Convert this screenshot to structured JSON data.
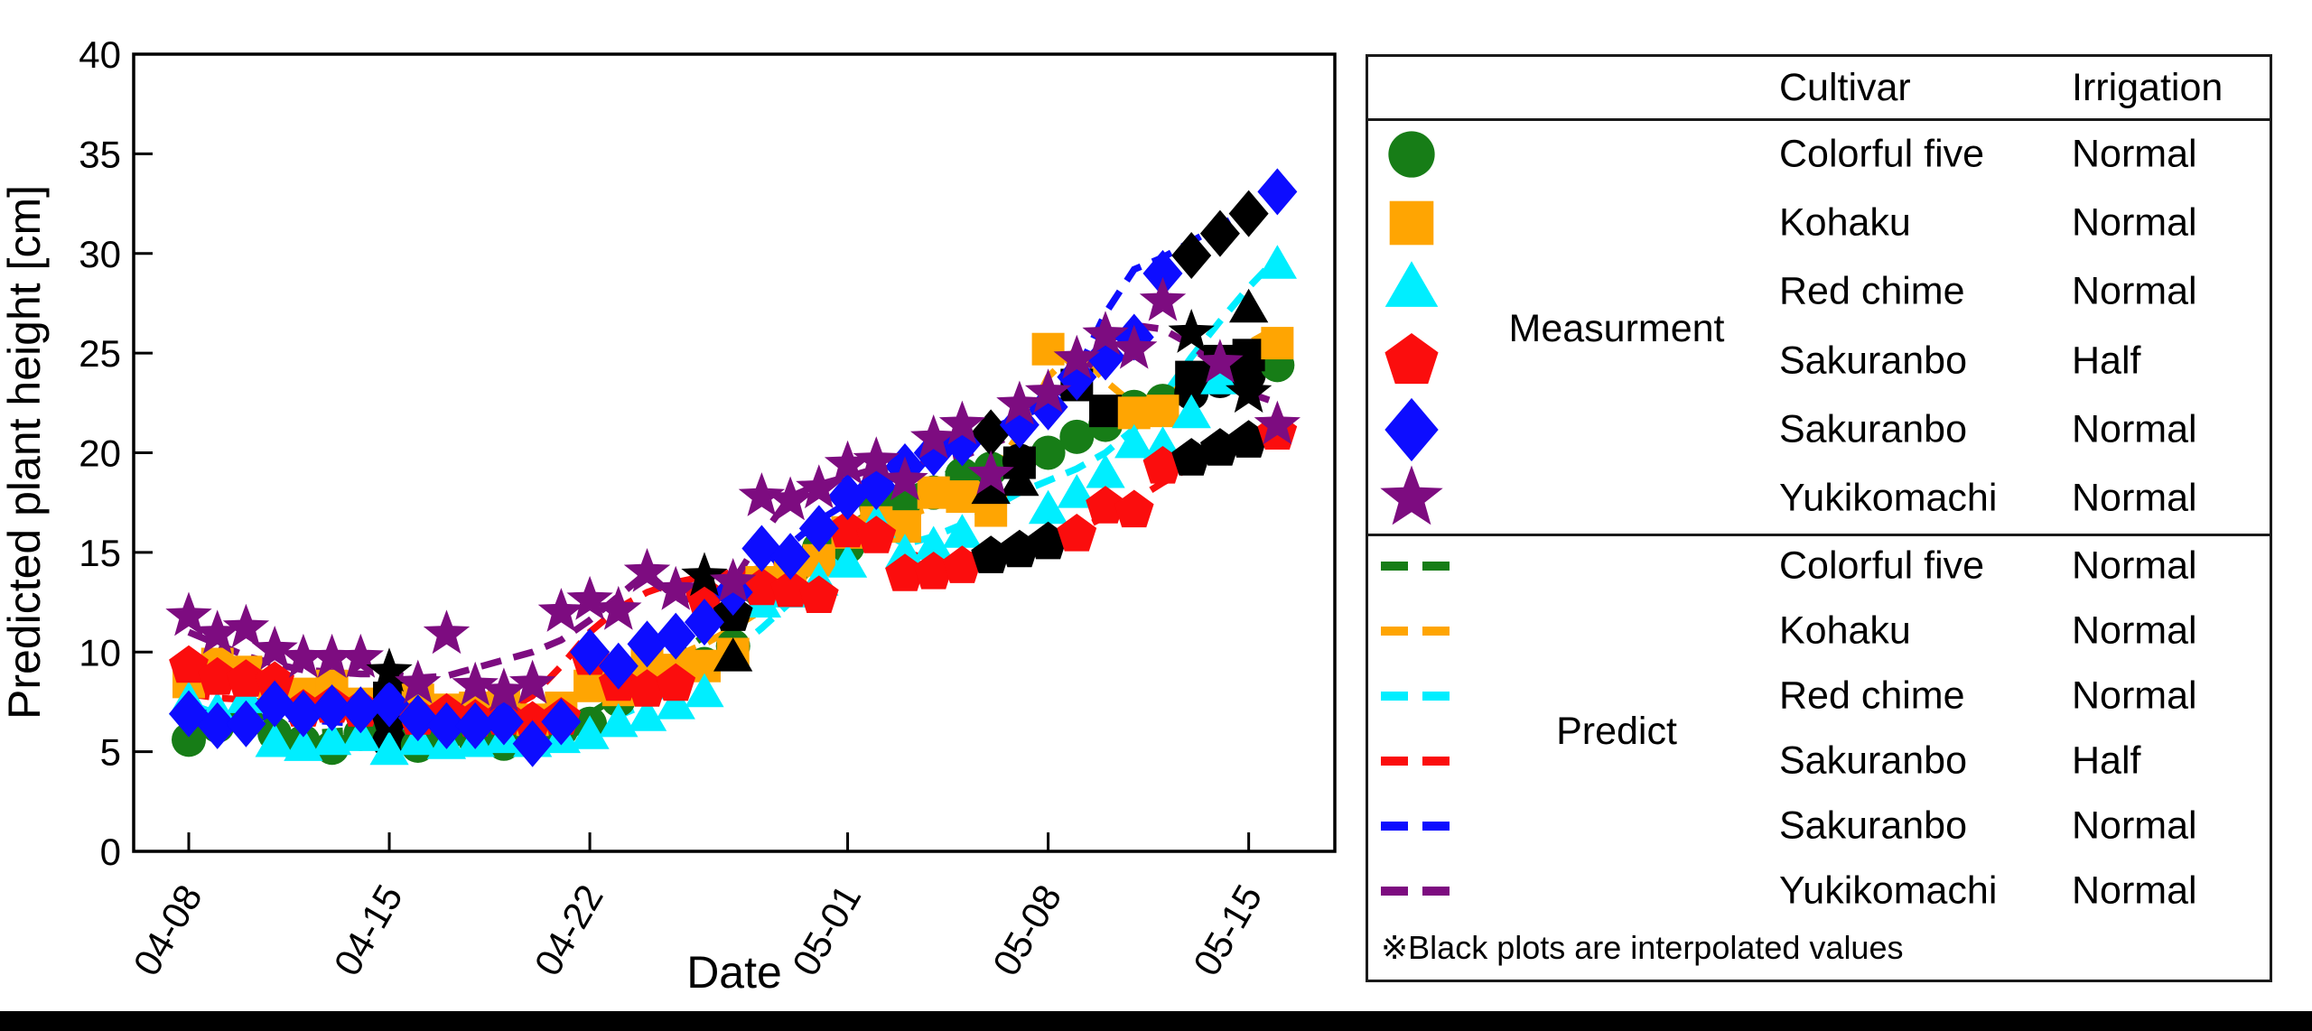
{
  "chart_data": {
    "type": "scatter",
    "title": "",
    "xlabel": "Date",
    "ylabel": "Predicted plant height [cm]",
    "ylim": [
      0,
      40
    ],
    "yticks": [
      0,
      5,
      10,
      15,
      20,
      25,
      30,
      35,
      40
    ],
    "xtick_labels": [
      "04-08",
      "04-15",
      "04-22",
      "05-01",
      "05-08",
      "05-15"
    ],
    "grid": false,
    "dates": [
      "04-08",
      "04-09",
      "04-10",
      "04-11",
      "04-12",
      "04-13",
      "04-14",
      "04-15",
      "04-16",
      "04-17",
      "04-18",
      "04-19",
      "04-20",
      "04-21",
      "04-22",
      "04-23",
      "04-24",
      "04-25",
      "04-26",
      "04-27",
      "04-28",
      "04-29",
      "04-30",
      "05-01",
      "05-02",
      "05-03",
      "05-04",
      "05-05",
      "05-06",
      "05-07",
      "05-08",
      "05-09",
      "05-10",
      "05-11",
      "05-12",
      "05-13",
      "05-14",
      "05-15",
      "05-16"
    ],
    "interpolated_color": "#000000",
    "measurement_series": [
      {
        "name": "Colorful five Normal",
        "marker": "circle",
        "color": "#177d17",
        "values": [
          5.6,
          6.3,
          6.6,
          5.9,
          5.5,
          5.2,
          5.9,
          5.5,
          5.3,
          5.9,
          5.6,
          5.4,
          5.6,
          6.1,
          6.4,
          7.6,
          8.4,
          8.9,
          9.4,
          10.3,
          13.0,
          13.9,
          15.2,
          15.3,
          17.3,
          17.6,
          18.0,
          18.9,
          19.2,
          19.6,
          20.0,
          20.8,
          21.4,
          22.3,
          22.6,
          23.0,
          23.6,
          23.9,
          24.4
        ],
        "interpolated_days": [
          7,
          29,
          35,
          36,
          37
        ]
      },
      {
        "name": "Kohaku Normal",
        "marker": "square",
        "color": "#ffa502",
        "values": [
          8.5,
          9.4,
          9.0,
          7.9,
          7.9,
          8.3,
          7.4,
          7.7,
          7.6,
          7.1,
          7.2,
          7.4,
          6.6,
          7.2,
          8.3,
          8.1,
          9.4,
          9.1,
          9.3,
          9.9,
          13.5,
          14.0,
          14.6,
          16.0,
          16.5,
          16.3,
          18.0,
          17.8,
          17.1,
          19.5,
          25.2,
          23.4,
          22.1,
          22.0,
          22.1,
          23.8,
          24.6,
          24.9,
          25.5
        ],
        "interpolated_days": [
          7,
          29,
          31,
          32,
          35,
          36,
          37
        ]
      },
      {
        "name": "Red chime Normal",
        "marker": "triangle",
        "color": "#00eeff",
        "values": [
          7.4,
          6.9,
          7.5,
          5.3,
          5.1,
          5.4,
          5.6,
          4.9,
          5.4,
          5.2,
          5.3,
          5.5,
          5.3,
          5.5,
          5.7,
          6.3,
          6.6,
          7.2,
          7.8,
          9.6,
          12.3,
          12.8,
          13.4,
          14.3,
          16.3,
          14.8,
          15.2,
          15.8,
          18.0,
          18.4,
          17.0,
          17.8,
          18.8,
          20.3,
          20.2,
          21.8,
          23.5,
          27.1,
          29.3
        ],
        "interpolated_days": [
          19,
          28,
          29,
          37
        ]
      },
      {
        "name": "Sakuranbo Half",
        "marker": "pentagon",
        "color": "#fb0d0d",
        "values": [
          9.3,
          8.7,
          8.6,
          8.5,
          7.1,
          7.3,
          7.1,
          6.8,
          6.7,
          6.9,
          6.6,
          6.7,
          6.5,
          6.7,
          9.7,
          8.4,
          8.1,
          8.4,
          12.8,
          11.9,
          13.2,
          13.1,
          12.8,
          16.1,
          15.8,
          13.9,
          14.0,
          14.3,
          14.8,
          15.1,
          15.5,
          15.9,
          17.3,
          17.1,
          19.3,
          19.7,
          20.2,
          20.6,
          21.0
        ],
        "interpolated_days": [
          7,
          19,
          28,
          29,
          30,
          35,
          36,
          37
        ]
      },
      {
        "name": "Sakuranbo Normal",
        "marker": "diamond",
        "color": "#0d0dff",
        "values": [
          6.9,
          6.3,
          6.4,
          7.4,
          6.9,
          7.2,
          7.1,
          7.4,
          6.7,
          6.3,
          6.3,
          6.5,
          5.4,
          6.5,
          10.0,
          9.3,
          10.4,
          10.8,
          11.5,
          13.0,
          15.2,
          14.8,
          16.2,
          17.8,
          18.3,
          19.3,
          20.0,
          20.5,
          21.0,
          21.4,
          22.3,
          23.8,
          24.8,
          25.8,
          29.0,
          29.9,
          31.0,
          32.0,
          33.1
        ],
        "interpolated_days": [
          28,
          35,
          36,
          37
        ]
      },
      {
        "name": "Yukikomachi Normal",
        "marker": "star",
        "color": "#7d0c80",
        "values": [
          11.8,
          10.9,
          11.2,
          10.1,
          9.7,
          9.7,
          9.7,
          9.0,
          8.4,
          10.9,
          8.3,
          8.0,
          8.4,
          12.0,
          12.6,
          12.1,
          14.0,
          13.1,
          13.8,
          13.5,
          17.8,
          17.6,
          18.2,
          19.4,
          19.6,
          18.6,
          20.7,
          21.4,
          18.9,
          22.4,
          23.0,
          24.7,
          25.9,
          25.2,
          27.6,
          26.0,
          24.5,
          23.0,
          21.4
        ],
        "interpolated_days": [
          7,
          18,
          35,
          37
        ]
      }
    ],
    "predict_series": [
      {
        "name": "Colorful five Normal",
        "color": "#177d17",
        "values": [
          6.2,
          6.2,
          6.1,
          6.0,
          5.9,
          6.0,
          6.1,
          6.0,
          5.9,
          6.0,
          6.0,
          5.9,
          6.0,
          6.3,
          6.9,
          7.8,
          8.8,
          9.8,
          10.8,
          11.9,
          13.1,
          14.3,
          15.4,
          16.3,
          17.2,
          18.0,
          18.7,
          19.2,
          19.6,
          20.0,
          20.3,
          20.7,
          21.2,
          21.8,
          22.4,
          23.0,
          23.6,
          24.2,
          24.7
        ]
      },
      {
        "name": "Kohaku Normal",
        "color": "#ffa502",
        "values": [
          8.6,
          8.5,
          8.3,
          8.0,
          7.8,
          7.7,
          7.6,
          7.4,
          7.3,
          7.2,
          7.1,
          7.0,
          7.0,
          7.3,
          7.9,
          8.6,
          9.2,
          9.8,
          10.4,
          11.2,
          12.1,
          13.2,
          14.4,
          15.4,
          16.2,
          16.8,
          17.3,
          17.8,
          18.8,
          21.0,
          23.8,
          25.2,
          23.6,
          22.4,
          22.8,
          23.6,
          24.6,
          25.5,
          26.3
        ]
      },
      {
        "name": "Red chime Normal",
        "color": "#00eeff",
        "values": [
          7.4,
          6.9,
          6.4,
          5.9,
          5.6,
          5.5,
          5.5,
          5.4,
          5.4,
          5.5,
          5.5,
          5.6,
          5.7,
          5.9,
          6.3,
          6.8,
          7.4,
          8.2,
          9.0,
          10.0,
          11.2,
          12.5,
          13.8,
          15.0,
          16.2,
          15.4,
          15.8,
          16.4,
          17.2,
          18.0,
          18.6,
          19.2,
          20.0,
          21.2,
          22.8,
          24.8,
          26.6,
          28.3,
          29.8
        ]
      },
      {
        "name": "Sakuranbo Half",
        "color": "#fb0d0d",
        "values": [
          7.9,
          7.7,
          7.6,
          7.4,
          7.2,
          7.1,
          7.0,
          6.9,
          6.8,
          6.8,
          6.9,
          7.0,
          7.8,
          9.3,
          11.0,
          12.2,
          13.0,
          13.5,
          13.8,
          14.0,
          14.2,
          14.5,
          15.0,
          15.8,
          15.5,
          15.0,
          14.6,
          14.8,
          15.0,
          15.2,
          15.5,
          16.1,
          16.8,
          17.6,
          18.5,
          19.3,
          20.0,
          20.7,
          21.3
        ]
      },
      {
        "name": "Sakuranbo Normal",
        "color": "#0d0dff",
        "values": [
          7.0,
          6.9,
          6.8,
          6.7,
          6.6,
          6.5,
          6.4,
          6.3,
          6.3,
          6.2,
          6.2,
          6.3,
          6.5,
          7.0,
          8.0,
          9.0,
          9.9,
          10.7,
          11.5,
          12.6,
          14.0,
          15.4,
          16.6,
          17.5,
          18.3,
          19.0,
          19.7,
          20.4,
          21.2,
          21.8,
          22.4,
          24.0,
          27.0,
          29.2,
          29.8,
          30.6,
          31.4,
          32.2,
          33.0
        ]
      },
      {
        "name": "Yukikomachi Normal",
        "color": "#7d0c80",
        "values": [
          11.0,
          10.4,
          9.8,
          9.4,
          9.1,
          9.0,
          8.9,
          8.9,
          8.7,
          8.8,
          9.2,
          9.6,
          10.0,
          10.6,
          11.6,
          12.8,
          14.0,
          12.7,
          12.6,
          13.5,
          15.8,
          17.8,
          18.4,
          18.8,
          19.2,
          19.7,
          19.5,
          19.8,
          20.4,
          21.0,
          22.5,
          23.5,
          25.5,
          26.4,
          26.2,
          25.4,
          24.2,
          23.0,
          22.5
        ]
      }
    ]
  },
  "legend": {
    "columns": {
      "cultivar": "Cultivar",
      "irrigation": "Irrigation"
    },
    "groups": [
      {
        "label": "Measurment",
        "sample": "marker",
        "rows": [
          {
            "marker": "circle",
            "color": "#177d17",
            "cultivar": "Colorful five",
            "irrigation": "Normal"
          },
          {
            "marker": "square",
            "color": "#ffa502",
            "cultivar": "Kohaku",
            "irrigation": "Normal"
          },
          {
            "marker": "triangle",
            "color": "#00eeff",
            "cultivar": "Red chime",
            "irrigation": "Normal"
          },
          {
            "marker": "pentagon",
            "color": "#fb0d0d",
            "cultivar": "Sakuranbo",
            "irrigation": "Half"
          },
          {
            "marker": "diamond",
            "color": "#0d0dff",
            "cultivar": "Sakuranbo",
            "irrigation": "Normal"
          },
          {
            "marker": "star",
            "color": "#7d0c80",
            "cultivar": "Yukikomachi",
            "irrigation": "Normal"
          }
        ]
      },
      {
        "label": "Predict",
        "sample": "dash",
        "rows": [
          {
            "marker": "dash",
            "color": "#177d17",
            "cultivar": "Colorful five",
            "irrigation": "Normal"
          },
          {
            "marker": "dash",
            "color": "#ffa502",
            "cultivar": "Kohaku",
            "irrigation": "Normal"
          },
          {
            "marker": "dash",
            "color": "#00eeff",
            "cultivar": "Red chime",
            "irrigation": "Normal"
          },
          {
            "marker": "dash",
            "color": "#fb0d0d",
            "cultivar": "Sakuranbo",
            "irrigation": "Half"
          },
          {
            "marker": "dash",
            "color": "#0d0dff",
            "cultivar": "Sakuranbo",
            "irrigation": "Normal"
          },
          {
            "marker": "dash",
            "color": "#7d0c80",
            "cultivar": "Yukikomachi",
            "irrigation": "Normal"
          }
        ]
      }
    ],
    "footnote": "※Black plots are interpolated values"
  }
}
